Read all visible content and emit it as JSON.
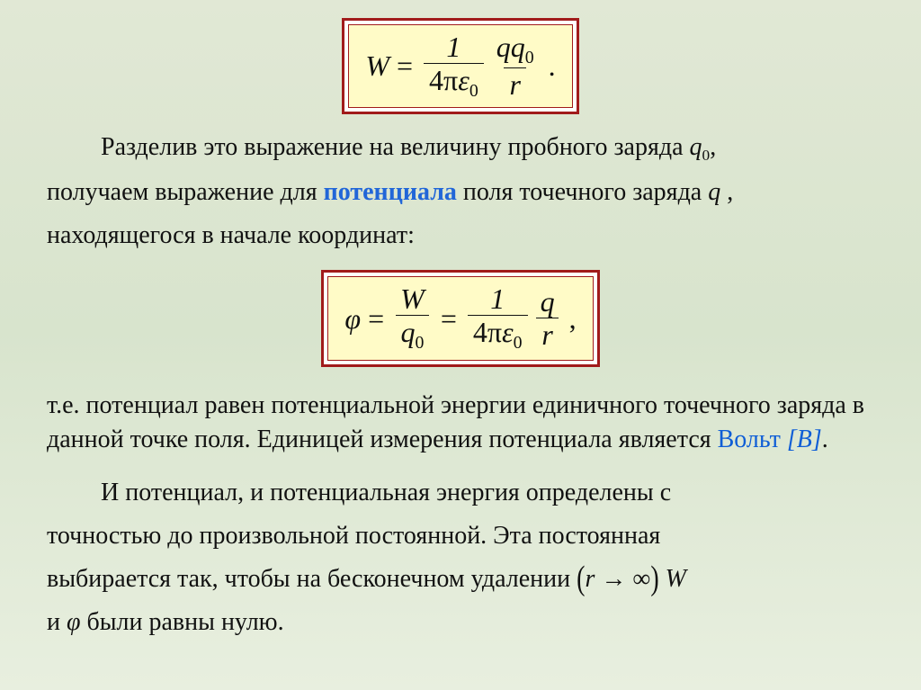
{
  "formula1": {
    "lhs": "W",
    "eq": "=",
    "frac1_num": "1",
    "frac1_den_before": "4π",
    "frac1_den_eps": "ε",
    "frac1_den_sub": "0",
    "frac2_num_q": "q",
    "frac2_num_q0": "q",
    "frac2_num_q0_sub": "0",
    "frac2_den": "r",
    "trail": "."
  },
  "p1": {
    "t1": "Разделив это выражение на величину пробного заряда  ",
    "q0": "q",
    "q0_sub": "0",
    "t1_tail": ",",
    "t2a": "получаем выражение для ",
    "key": "потенциала",
    "t2b": " поля точечного заряда  ",
    "q": "q",
    "t2_tail": "  ,",
    "t3": "находящегося в начале координат:"
  },
  "formula2": {
    "phi": "φ",
    "eq": "=",
    "f1_num": "W",
    "f1_den_q": "q",
    "f1_den_sub": "0",
    "f2_num": "1",
    "f2_den_before": "4π",
    "f2_den_eps": "ε",
    "f2_den_sub": "0",
    "f3_num": "q",
    "f3_den": "r",
    "trail": ","
  },
  "p2": {
    "t1": "т.е. потенциал равен потенциальной энергии единичного точечного заряда в данной точке поля. Единицей измерения потенциала является ",
    "volt": "Вольт",
    "volt_unit": " [В]",
    "tail": "."
  },
  "p3": {
    "t1": "И потенциал, и потенциальная энергия определены с",
    "t2": "точностью до произвольной постоянной. Эта постоянная",
    "t3a": "выбирается так, чтобы на бесконечном удалении  ",
    "lpar": "(",
    "r": "r",
    "arrow": " → ",
    "inf": "∞",
    "rpar": ")",
    "W": "  W",
    "t4a": "и  ",
    "phi": "φ",
    "t4b": "  были равны нулю."
  },
  "colors": {
    "highlight": "#2166d8",
    "blue_plain": "#0f5ed6",
    "frame": "#a11b1b",
    "frame_fill": "#fffbc7"
  }
}
